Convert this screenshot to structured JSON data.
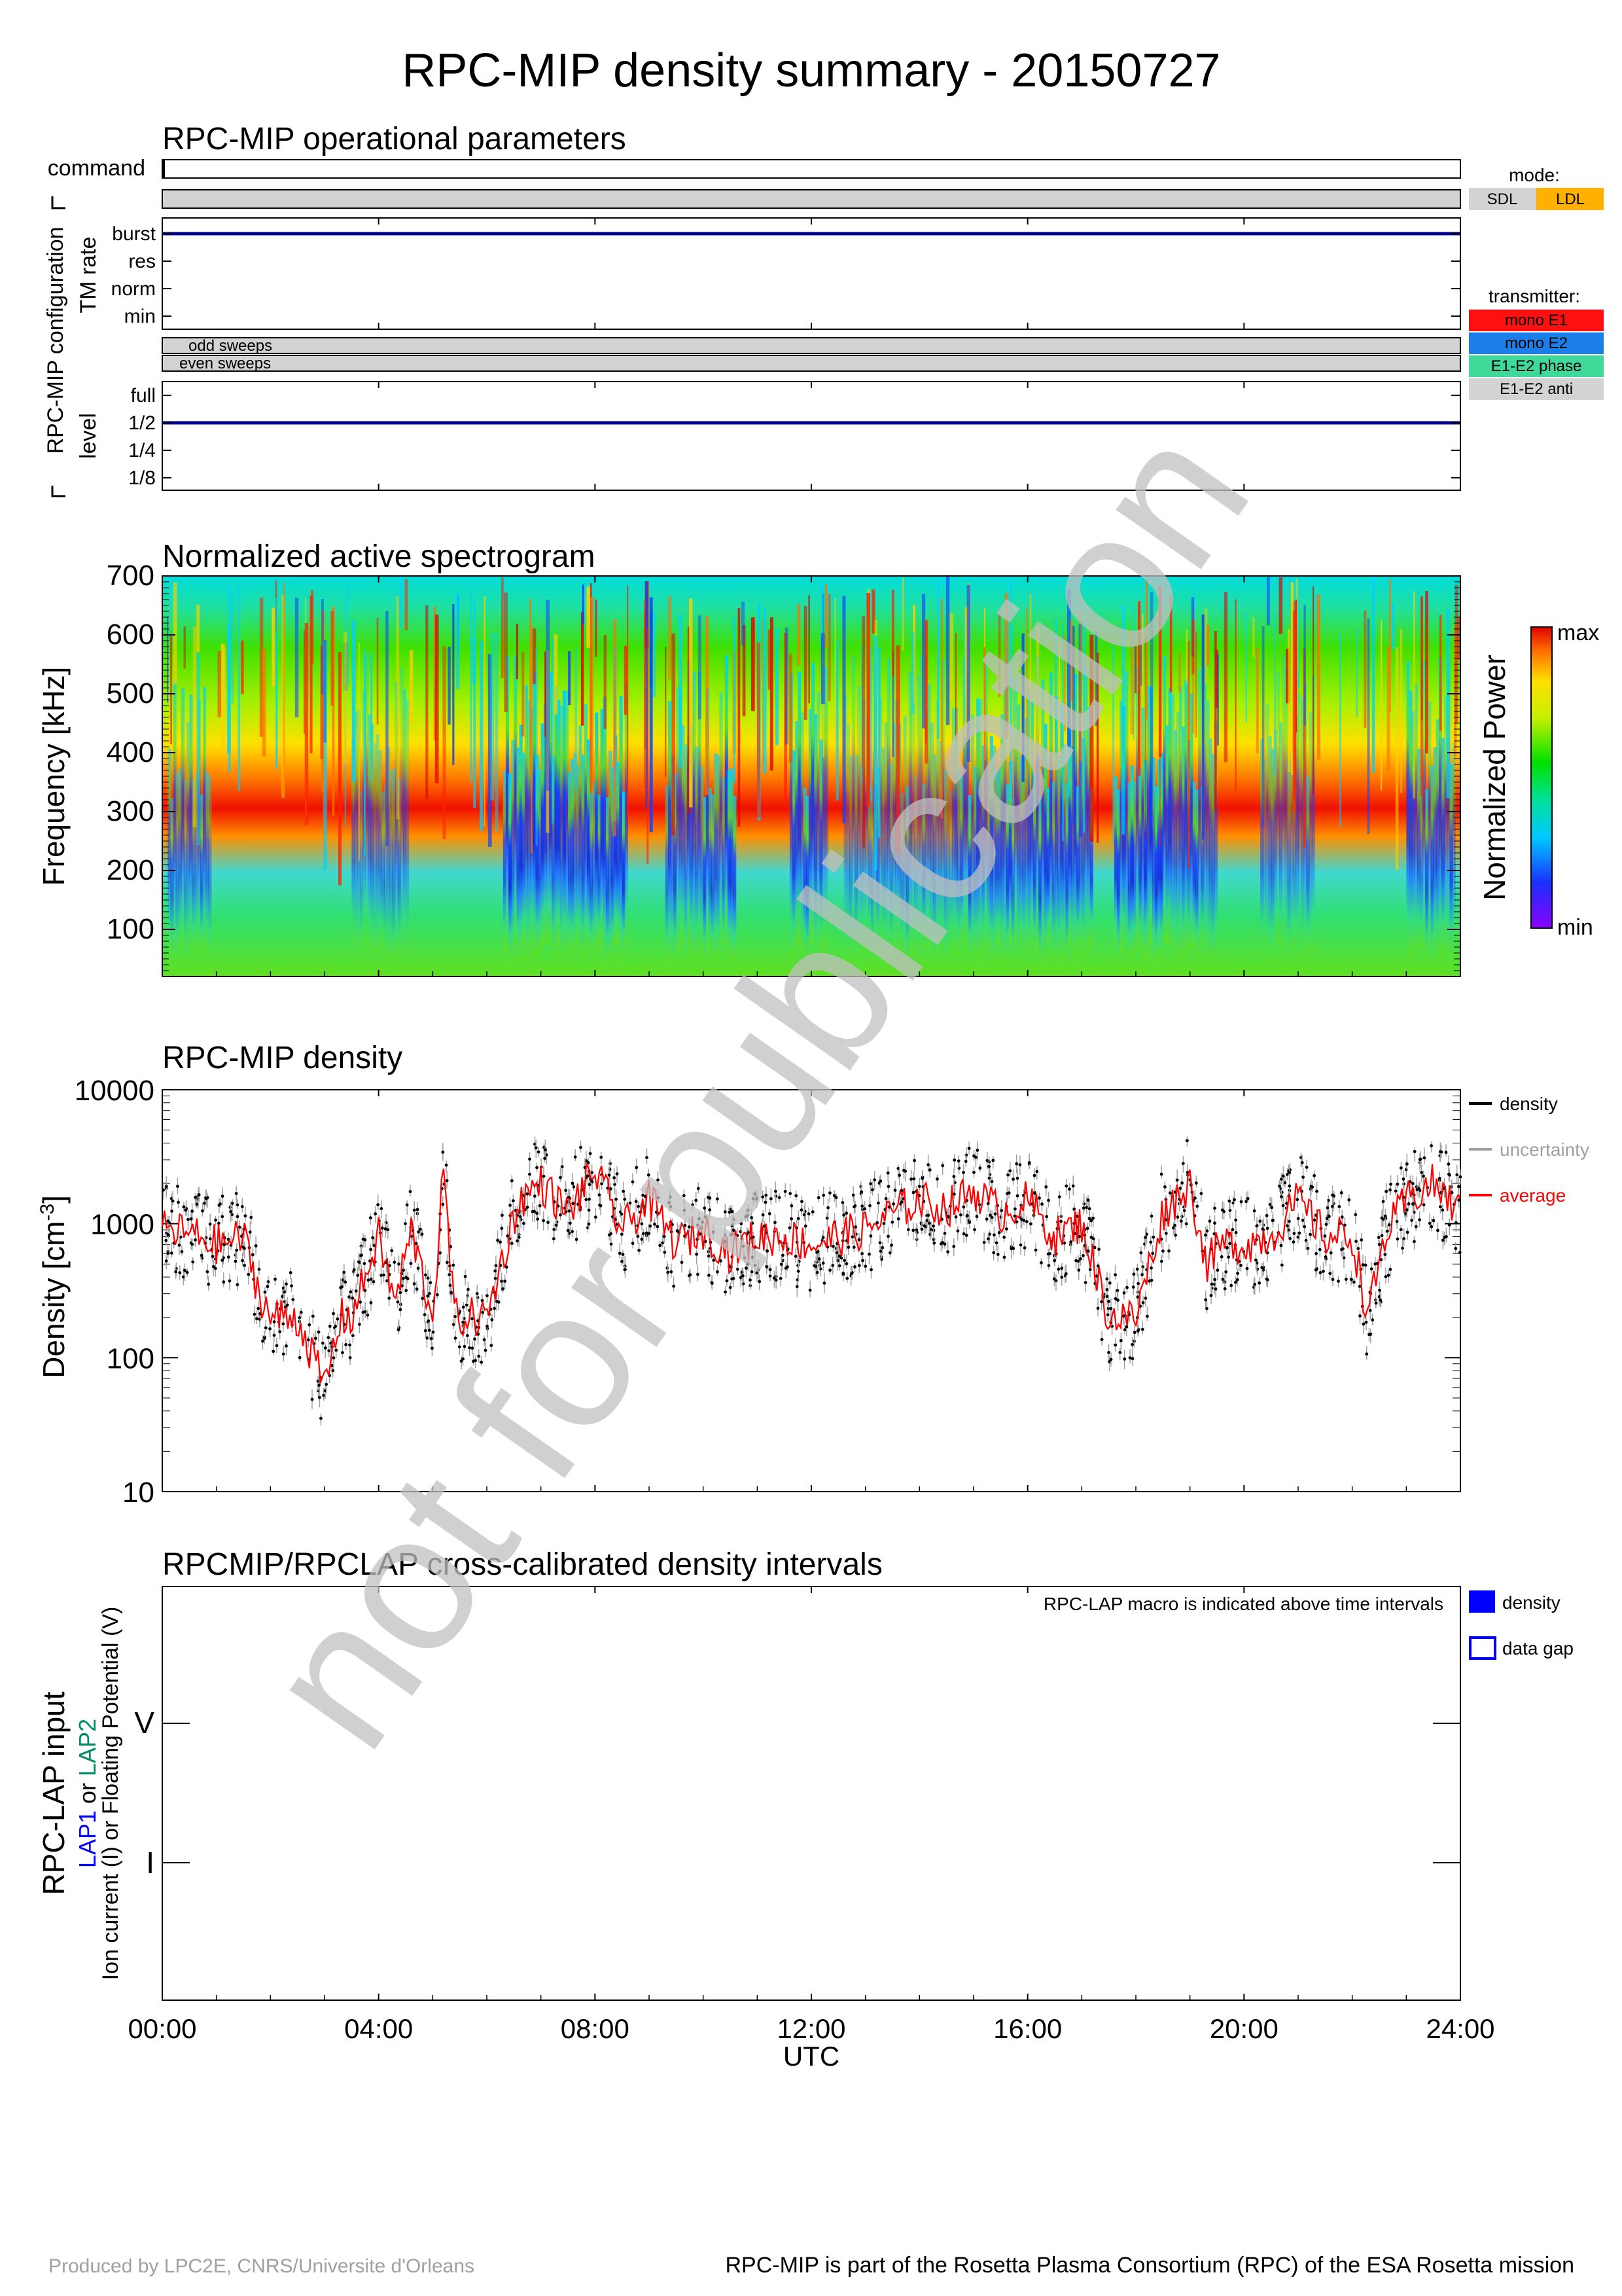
{
  "title": "RPC-MIP density summary - 20150727",
  "panel1": {
    "title": "RPC-MIP operational parameters",
    "command_label": "command",
    "group_label": "RPC-MIP configuration",
    "tm_rate_label": "TM rate",
    "tm_rate_ticks": [
      "burst",
      "res",
      "norm",
      "min"
    ],
    "tm_rate_value": "burst",
    "sweeps": [
      "odd sweeps",
      "even sweeps"
    ],
    "level_label": "level",
    "level_ticks": [
      "full",
      "1/2",
      "1/4",
      "1/8"
    ],
    "level_value": "1/2",
    "mode_legend": {
      "title": "mode:",
      "items": [
        {
          "label": "SDL",
          "color": "#d3d3d3"
        },
        {
          "label": "LDL",
          "color": "#ffb000"
        }
      ]
    },
    "transmitter_legend": {
      "title": "transmitter:",
      "items": [
        {
          "label": "mono E1",
          "color": "#ff1010"
        },
        {
          "label": "mono E2",
          "color": "#1a7fe8"
        },
        {
          "label": "E1-E2 phase",
          "color": "#3fd99a"
        },
        {
          "label": "E1-E2 anti",
          "color": "#d3d3d3"
        }
      ]
    },
    "line_color": "#00008b",
    "fill_color": "#d3d3d3"
  },
  "panel2": {
    "title": "Normalized active spectrogram",
    "ylabel": "Frequency [kHz]",
    "yticks": [
      "100",
      "200",
      "300",
      "400",
      "500",
      "600",
      "700"
    ],
    "colorbar_label": "Normalized Power",
    "colorbar_max": "max",
    "colorbar_min": "min"
  },
  "panel3": {
    "title": "RPC-MIP density",
    "ylabel": "Density [cm",
    "ylabel_sup": "-3",
    "ylabel_close": "]",
    "yticks": [
      "10000",
      "1000",
      "100",
      "10"
    ],
    "legend": [
      {
        "label": "density",
        "color": "#000000"
      },
      {
        "label": "uncertainty",
        "color": "#a0a0a0"
      },
      {
        "label": "average",
        "color": "#ff0000"
      }
    ]
  },
  "panel4": {
    "title": "RPCMIP/RPCLAP cross-calibrated density intervals",
    "note": "RPC-LAP macro is indicated above time intervals",
    "ylabel_main": "RPC-LAP input",
    "ylabel_lap1": "LAP1",
    "ylabel_or": " or ",
    "ylabel_lap2": "LAP2",
    "ylabel_sub": "Ion current (I) or Floating Potential (V)",
    "lap1_color": "#0000ff",
    "lap2_color": "#008b6b",
    "yticks": [
      "V",
      "I"
    ],
    "legend": [
      {
        "label": "density",
        "style": "filled",
        "color": "#0000ff"
      },
      {
        "label": "data gap",
        "style": "outline",
        "color": "#0000ff"
      }
    ]
  },
  "x_axis": {
    "ticks": [
      "00:00",
      "04:00",
      "08:00",
      "12:00",
      "16:00",
      "20:00",
      "24:00"
    ],
    "label": "UTC"
  },
  "watermark": "not for publication",
  "footer": {
    "left": "Produced by LPC2E, CNRS/Universite d'Orleans",
    "right": "RPC-MIP is part of the Rosetta Plasma Consortium (RPC) of the ESA Rosetta mission"
  },
  "chart_data": [
    {
      "type": "line",
      "title": "RPC-MIP density",
      "ylabel": "Density [cm-3]",
      "xlabel": "UTC",
      "xlim": [
        0,
        24
      ],
      "ylim": [
        10,
        10000
      ],
      "yscale": "log",
      "series": [
        {
          "name": "average",
          "x": [
            0.0,
            0.5,
            1.0,
            1.5,
            1.8,
            2.0,
            2.5,
            3.0,
            3.3,
            3.5,
            4.0,
            4.3,
            4.6,
            5.0,
            5.2,
            5.4,
            5.6,
            6.0,
            6.4,
            6.6,
            7.0,
            7.5,
            8.0,
            8.5,
            9.0,
            9.5,
            10.0,
            10.5,
            11.0,
            11.5,
            12.0,
            12.5,
            13.0,
            13.5,
            14.0,
            14.5,
            15.0,
            15.5,
            16.0,
            16.5,
            17.0,
            17.5,
            18.0,
            18.5,
            19.0,
            19.3,
            19.6,
            20.0,
            20.5,
            21.0,
            21.5,
            22.0,
            22.3,
            22.6,
            23.0,
            23.5,
            24.0
          ],
          "y": [
            900,
            850,
            700,
            800,
            300,
            200,
            200,
            60,
            200,
            200,
            800,
            250,
            900,
            200,
            2500,
            200,
            200,
            200,
            800,
            1500,
            2000,
            1200,
            2500,
            900,
            1500,
            700,
            900,
            600,
            800,
            800,
            700,
            800,
            900,
            1200,
            1500,
            1300,
            1800,
            1200,
            1500,
            800,
            1000,
            200,
            200,
            1200,
            2000,
            500,
            700,
            700,
            800,
            1500,
            800,
            800,
            200,
            800,
            1500,
            2000,
            1200
          ]
        }
      ]
    },
    {
      "type": "heatmap",
      "title": "Normalized active spectrogram",
      "ylabel": "Frequency [kHz]",
      "xlabel": "UTC",
      "xlim": [
        0,
        24
      ],
      "ylim": [
        20,
        700
      ],
      "colorbar": [
        "min",
        "max"
      ]
    }
  ]
}
